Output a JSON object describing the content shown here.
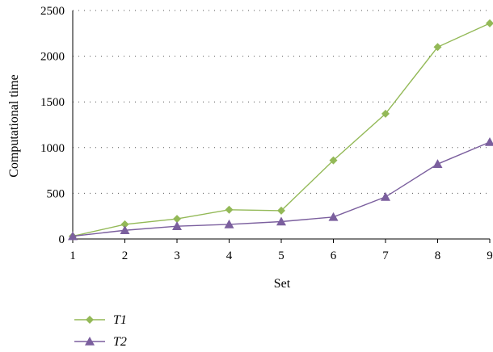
{
  "chart_data": {
    "type": "line",
    "xlabel": "Set",
    "ylabel": "Computational time",
    "x": [
      1,
      2,
      3,
      4,
      5,
      6,
      7,
      8,
      9
    ],
    "ylim": [
      0,
      2500
    ],
    "yticks": [
      0,
      500,
      1000,
      1500,
      2000,
      2500
    ],
    "grid": "horizontal dotted",
    "legend_position": "bottom-left",
    "series": [
      {
        "name": "T1",
        "color": "#93b957",
        "marker": "diamond",
        "values": [
          30,
          160,
          220,
          320,
          310,
          860,
          1370,
          2100,
          2360
        ]
      },
      {
        "name": "T2",
        "color": "#7b5f9e",
        "marker": "triangle",
        "values": [
          30,
          95,
          140,
          160,
          190,
          240,
          460,
          820,
          1060
        ]
      }
    ]
  }
}
